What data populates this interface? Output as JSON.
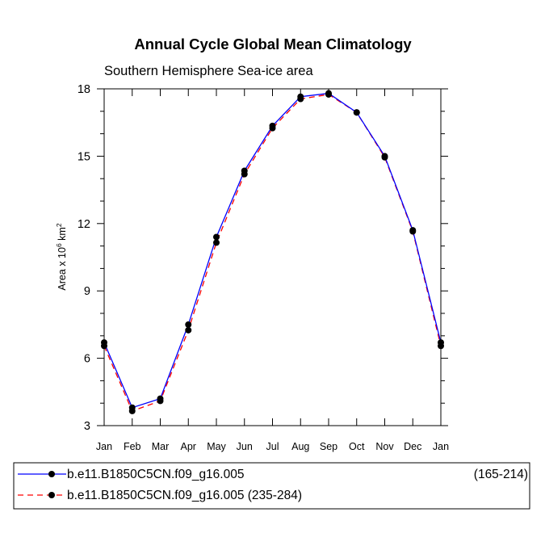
{
  "chart_data": {
    "type": "line",
    "title": "Annual Cycle Global Mean Climatology",
    "subtitle": "Southern Hemisphere Sea-ice area",
    "ylabel_prefix": "Area x 10",
    "ylabel_exp1": "6",
    "ylabel_mid": " km",
    "ylabel_exp2": "2",
    "xlabel": "",
    "ylim": [
      3,
      18
    ],
    "yticks": [
      3,
      6,
      9,
      12,
      15,
      18
    ],
    "yticks_labels": [
      "3",
      "6",
      "9",
      "12",
      "15",
      "18"
    ],
    "categories": [
      "Jan",
      "Feb",
      "Mar",
      "Apr",
      "May",
      "Jun",
      "Jul",
      "Aug",
      "Sep",
      "Oct",
      "Nov",
      "Dec",
      "Jan"
    ],
    "series": [
      {
        "name": "b.e11.B1850C5CN.f09_g16.005",
        "years": "(165-214)",
        "color": "#0000ff",
        "dash": "solid",
        "values": [
          6.7,
          3.8,
          4.2,
          7.5,
          11.4,
          14.35,
          16.35,
          17.65,
          17.8,
          16.95,
          15.0,
          11.7,
          6.7
        ]
      },
      {
        "name": "b.e11.B1850C5CN.f09_g16.005 (235-284)",
        "years": "",
        "color": "#ff0000",
        "dash": "dashed",
        "values": [
          6.55,
          3.65,
          4.1,
          7.25,
          11.15,
          14.2,
          16.25,
          17.55,
          17.75,
          16.95,
          14.95,
          11.65,
          6.55
        ]
      }
    ],
    "marker_color": "#000000"
  }
}
